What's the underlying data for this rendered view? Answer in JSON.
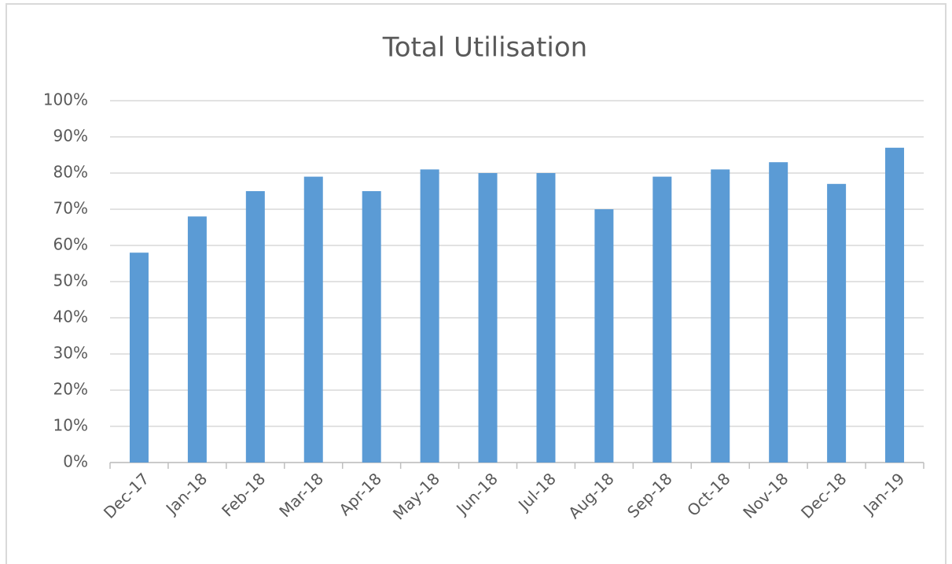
{
  "chart_data": {
    "type": "bar",
    "title": "Total Utilisation",
    "categories": [
      "Dec-17",
      "Jan-18",
      "Feb-18",
      "Mar-18",
      "Apr-18",
      "May-18",
      "Jun-18",
      "Jul-18",
      "Aug-18",
      "Sep-18",
      "Oct-18",
      "Nov-18",
      "Dec-18",
      "Jan-19"
    ],
    "values": [
      58,
      68,
      75,
      79,
      75,
      81,
      80,
      80,
      70,
      79,
      81,
      83,
      77,
      87
    ],
    "color": "#5b9bd5",
    "ylim": [
      0,
      100
    ],
    "yticks": [
      {
        "value": 0,
        "label": "0%"
      },
      {
        "value": 10,
        "label": "10%"
      },
      {
        "value": 20,
        "label": "20%"
      },
      {
        "value": 30,
        "label": "30%"
      },
      {
        "value": 40,
        "label": "40%"
      },
      {
        "value": 50,
        "label": "50%"
      },
      {
        "value": 60,
        "label": "60%"
      },
      {
        "value": 70,
        "label": "70%"
      },
      {
        "value": 80,
        "label": "80%"
      },
      {
        "value": 90,
        "label": "90%"
      },
      {
        "value": 100,
        "label": "100%"
      }
    ],
    "grid": true
  }
}
